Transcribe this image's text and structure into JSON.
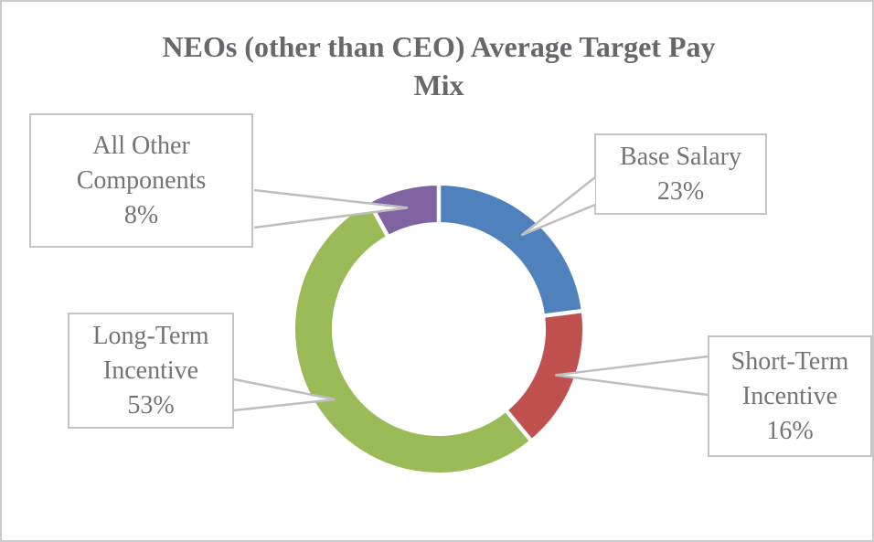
{
  "header": {
    "title_line1": "NEOs (other than CEO) Average Target Pay",
    "title_line2": "Mix"
  },
  "chart_data": {
    "type": "pie",
    "variant": "donut",
    "title": "NEOs (other than CEO) Average Target Pay Mix",
    "segments": [
      {
        "label": "Base Salary",
        "value_pct": 23,
        "pct_label": "23%",
        "color": "#4F81BD"
      },
      {
        "label": "Short-Term Incentive",
        "value_pct": 16,
        "pct_label": "16%",
        "color": "#C0504D"
      },
      {
        "label": "Long-Term Incentive",
        "value_pct": 53,
        "pct_label": "53%",
        "color": "#9BBB59"
      },
      {
        "label": "All Other Components",
        "value_pct": 8,
        "pct_label": "8%",
        "color": "#8064A2"
      }
    ],
    "start_angle_deg": 0,
    "direction": "clockwise",
    "hole_ratio": 0.75,
    "legend_position": "none",
    "labels_style": "callout boxes with white leader wedges",
    "separator_color": "#FFFFFF",
    "callout_border_color": "#C3C4C6",
    "text_color": "#727476",
    "title_color": "#67686B"
  }
}
